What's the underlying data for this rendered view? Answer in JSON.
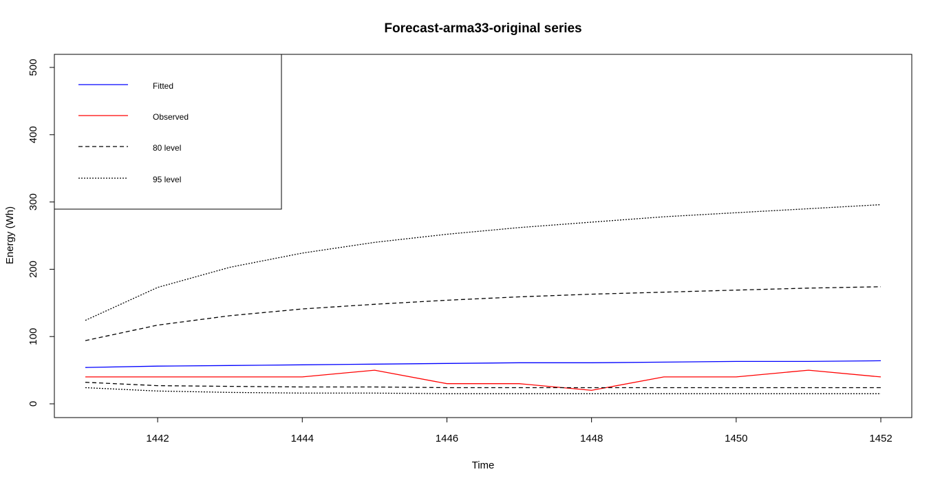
{
  "chart_data": {
    "type": "line",
    "title": "Forecast-arma33-original series",
    "xlabel": "Time",
    "ylabel": "Energy (Wh)",
    "xlim": [
      1441,
      1452
    ],
    "ylim": [
      0,
      500
    ],
    "x_ticks": [
      1442,
      1444,
      1446,
      1448,
      1450,
      1452
    ],
    "y_ticks": [
      0,
      100,
      200,
      300,
      400,
      500
    ],
    "legend_position": "top-left",
    "grid": false,
    "x": [
      1441,
      1442,
      1443,
      1444,
      1445,
      1446,
      1447,
      1448,
      1449,
      1450,
      1451,
      1452
    ],
    "series": [
      {
        "name": "Fitted",
        "color": "#0000ff",
        "style": "solid",
        "values": [
          54,
          56,
          57,
          58,
          59,
          60,
          61,
          61,
          62,
          63,
          63,
          64
        ]
      },
      {
        "name": "Observed",
        "color": "#ff0000",
        "style": "solid",
        "values": [
          40,
          40,
          40,
          40,
          50,
          30,
          30,
          20,
          40,
          40,
          50,
          40
        ]
      },
      {
        "name": "80 level",
        "color": "#000000",
        "style": "dashed",
        "upper": [
          94,
          117,
          131,
          141,
          148,
          154,
          159,
          163,
          166,
          169,
          172,
          174
        ],
        "lower": [
          32,
          27,
          26,
          25,
          25,
          24,
          24,
          24,
          24,
          24,
          24,
          24
        ]
      },
      {
        "name": "95 level",
        "color": "#000000",
        "style": "dotted",
        "upper": [
          124,
          173,
          203,
          224,
          240,
          252,
          262,
          270,
          278,
          284,
          290,
          296
        ],
        "lower": [
          24,
          19,
          17,
          16,
          16,
          15,
          15,
          15,
          15,
          15,
          15,
          15
        ]
      }
    ]
  }
}
